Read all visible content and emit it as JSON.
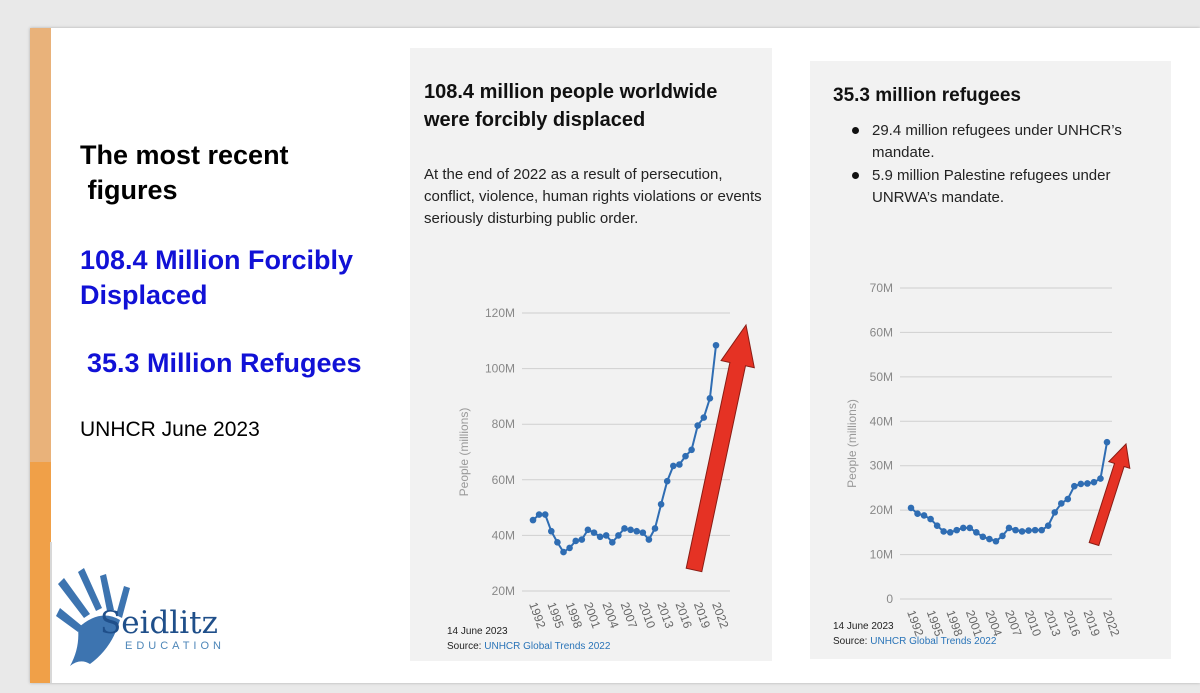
{
  "left_panel": {
    "heading": "The most recent\n figures",
    "stat_displaced": "108.4 Million Forcibly Displaced",
    "stat_refugees": "35.3 Million Refugees",
    "source": "UNHCR June 2023",
    "logo": {
      "word": "Seidlitz",
      "sub": "EDUCATION"
    }
  },
  "card1": {
    "title": "108.4 million people worldwide were forcibly displaced",
    "description": "At the end of 2022 as a result of persecution, conflict, violence, human rights violations or events seriously disturbing public order.",
    "date": "14 June 2023",
    "source_label": "Source:",
    "source_link": "UNHCR Global Trends 2022"
  },
  "card2": {
    "title": "35.3 million refugees",
    "bullets": [
      "29.4 million refugees under UNHCR’s mandate.",
      "5.9 million Palestine refugees under UNRWA’s mandate."
    ],
    "date": "14 June 2023",
    "source_label": "Source:",
    "source_link": "UNHCR Global Trends 2022"
  },
  "colors": {
    "line": "#2f6db3",
    "arrow": "#e53224",
    "accent_blue": "#1111d6",
    "bar_top": "#e9b27a",
    "bar_bottom": "#f0a048"
  },
  "chart_data": [
    {
      "type": "line",
      "ylabel": "People (millions)",
      "ylim": [
        20,
        120
      ],
      "yticks": [
        20,
        40,
        60,
        80,
        100,
        120
      ],
      "ytick_labels": [
        "20M",
        "40M",
        "60M",
        "80M",
        "100M",
        "120M"
      ],
      "xlim": [
        1992,
        2022
      ],
      "xticks": [
        "1992",
        "1995",
        "1998",
        "2001",
        "2004",
        "2007",
        "2010",
        "2013",
        "2016",
        "2019",
        "2022"
      ],
      "grid": true,
      "annotation": "red-arrow-up",
      "x": [
        1992,
        1993,
        1994,
        1995,
        1996,
        1997,
        1998,
        1999,
        2000,
        2001,
        2002,
        2003,
        2004,
        2005,
        2006,
        2007,
        2008,
        2009,
        2010,
        2011,
        2012,
        2013,
        2014,
        2015,
        2016,
        2017,
        2018,
        2019,
        2020,
        2021,
        2022
      ],
      "values": [
        45.5,
        47.5,
        47.5,
        41.5,
        37.5,
        34,
        35.5,
        38,
        38.5,
        42,
        41,
        39.5,
        40,
        37.5,
        40,
        42.5,
        42,
        41.5,
        41,
        38.5,
        42.5,
        51.2,
        59.5,
        65,
        65.5,
        68.5,
        70.8,
        79.5,
        82.4,
        89.3,
        108.4
      ]
    },
    {
      "type": "line",
      "ylabel": "People (millions)",
      "ylim": [
        0,
        70
      ],
      "yticks": [
        0,
        10,
        20,
        30,
        40,
        50,
        60,
        70
      ],
      "ytick_labels": [
        "0",
        "10M",
        "20M",
        "30M",
        "40M",
        "50M",
        "60M",
        "70M"
      ],
      "xlim": [
        1992,
        2022
      ],
      "xticks": [
        "1992",
        "1995",
        "1998",
        "2001",
        "2004",
        "2007",
        "2010",
        "2013",
        "2016",
        "2019",
        "2022"
      ],
      "grid": true,
      "annotation": "red-arrow-up",
      "x": [
        1992,
        1993,
        1994,
        1995,
        1996,
        1997,
        1998,
        1999,
        2000,
        2001,
        2002,
        2003,
        2004,
        2005,
        2006,
        2007,
        2008,
        2009,
        2010,
        2011,
        2012,
        2013,
        2014,
        2015,
        2016,
        2017,
        2018,
        2019,
        2020,
        2021,
        2022
      ],
      "values": [
        20.5,
        19.2,
        18.8,
        18,
        16.5,
        15.2,
        15,
        15.5,
        16,
        16,
        15,
        14,
        13.5,
        13,
        14.2,
        16,
        15.5,
        15.2,
        15.4,
        15.5,
        15.5,
        16.5,
        19.5,
        21.5,
        22.5,
        25.4,
        25.9,
        26,
        26.3,
        27.1,
        35.3
      ]
    }
  ]
}
